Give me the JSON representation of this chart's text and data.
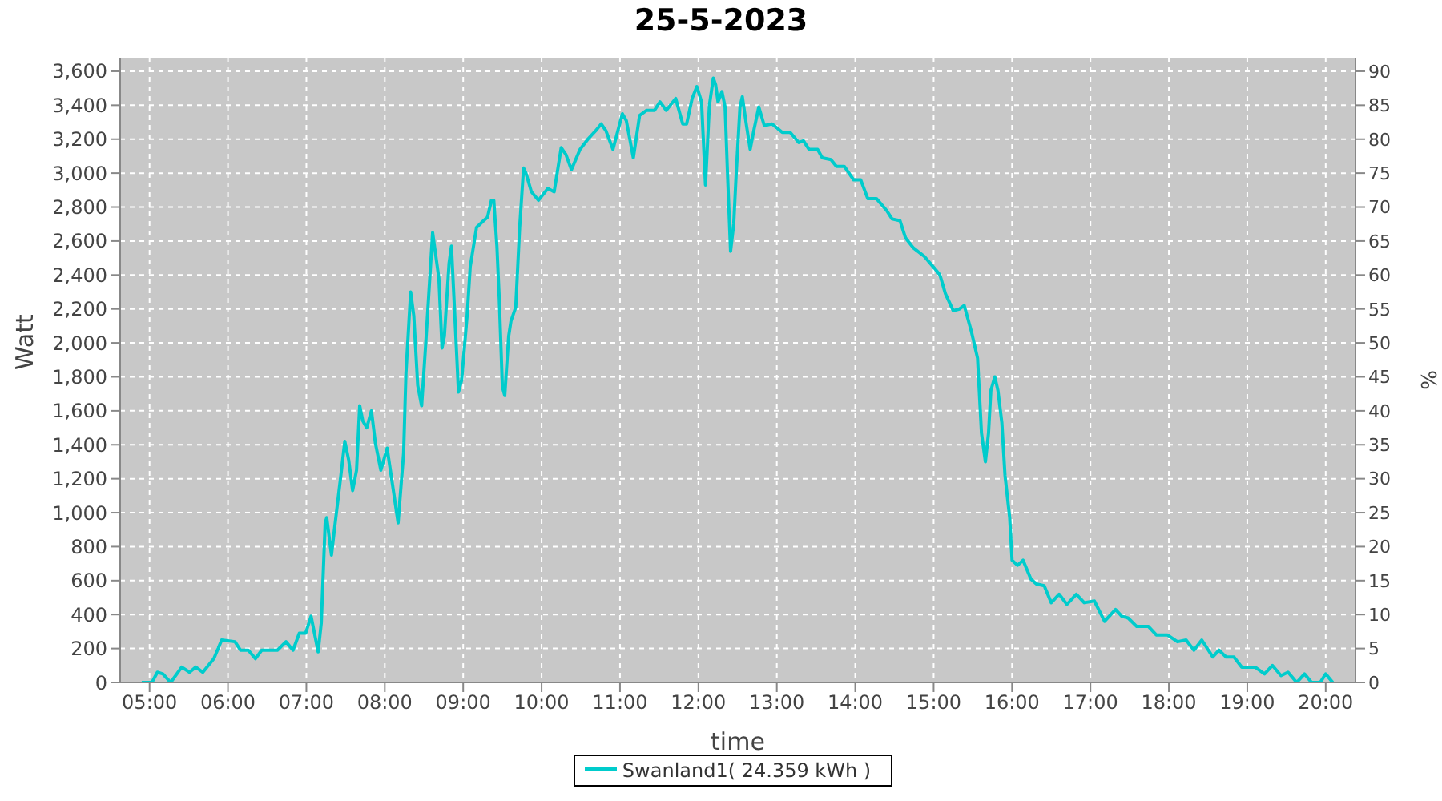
{
  "chart_data": {
    "type": "line",
    "title": "25-5-2023",
    "xlabel": "time",
    "ylabel": "Watt",
    "y2label": "%",
    "xlim": [
      4.625,
      20.38
    ],
    "xticks": [
      {
        "value": 5,
        "label": "05:00"
      },
      {
        "value": 6,
        "label": "06:00"
      },
      {
        "value": 7,
        "label": "07:00"
      },
      {
        "value": 8,
        "label": "08:00"
      },
      {
        "value": 9,
        "label": "09:00"
      },
      {
        "value": 10,
        "label": "10:00"
      },
      {
        "value": 11,
        "label": "11:00"
      },
      {
        "value": 12,
        "label": "12:00"
      },
      {
        "value": 13,
        "label": "13:00"
      },
      {
        "value": 14,
        "label": "14:00"
      },
      {
        "value": 15,
        "label": "15:00"
      },
      {
        "value": 16,
        "label": "16:00"
      },
      {
        "value": 17,
        "label": "17:00"
      },
      {
        "value": 18,
        "label": "18:00"
      },
      {
        "value": 19,
        "label": "19:00"
      },
      {
        "value": 20,
        "label": "20:00"
      }
    ],
    "ylim": [
      0,
      3680
    ],
    "yticks": [
      0,
      200,
      400,
      600,
      800,
      {
        "value": 1000,
        "label": "1,000"
      },
      {
        "value": 1200,
        "label": "1,200"
      },
      {
        "value": 1400,
        "label": "1,400"
      },
      {
        "value": 1600,
        "label": "1,600"
      },
      {
        "value": 1800,
        "label": "1,800"
      },
      {
        "value": 2000,
        "label": "2,000"
      },
      {
        "value": 2200,
        "label": "2,200"
      },
      {
        "value": 2400,
        "label": "2,400"
      },
      {
        "value": 2600,
        "label": "2,600"
      },
      {
        "value": 2800,
        "label": "2,800"
      },
      {
        "value": 3000,
        "label": "3,000"
      },
      {
        "value": 3200,
        "label": "3,200"
      },
      {
        "value": 3400,
        "label": "3,400"
      },
      {
        "value": 3600,
        "label": "3,600"
      }
    ],
    "y2lim": [
      0,
      92
    ],
    "y2ticks": [
      0,
      5,
      10,
      15,
      20,
      25,
      30,
      35,
      40,
      45,
      50,
      55,
      60,
      65,
      70,
      75,
      80,
      85,
      90
    ],
    "grid": true,
    "legend": "bottom",
    "marker": "none",
    "line_style": "solid",
    "series": [
      {
        "name": "Swanland1( 24.359 kWh )",
        "color": "#00cccc",
        "x": [
          4.9,
          5.03,
          5.1,
          5.17,
          5.27,
          5.41,
          5.51,
          5.59,
          5.68,
          5.82,
          5.92,
          6.09,
          6.16,
          6.26,
          6.35,
          6.43,
          6.63,
          6.74,
          6.83,
          6.91,
          6.99,
          7.06,
          7.15,
          7.19,
          7.24,
          7.26,
          7.32,
          7.36,
          7.44,
          7.49,
          7.54,
          7.59,
          7.64,
          7.68,
          7.72,
          7.77,
          7.83,
          7.88,
          7.95,
          8.03,
          8.1,
          8.17,
          8.24,
          8.27,
          8.33,
          8.37,
          8.42,
          8.47,
          8.52,
          8.61,
          8.69,
          8.73,
          8.76,
          8.82,
          8.85,
          8.89,
          8.94,
          8.98,
          9.05,
          9.09,
          9.17,
          9.26,
          9.31,
          9.36,
          9.39,
          9.43,
          9.46,
          9.5,
          9.53,
          9.58,
          9.61,
          9.67,
          9.72,
          9.77,
          9.8,
          9.87,
          9.96,
          10.08,
          10.16,
          10.25,
          10.31,
          10.38,
          10.49,
          10.59,
          10.69,
          10.76,
          10.82,
          10.91,
          11.03,
          11.08,
          11.17,
          11.25,
          11.34,
          11.44,
          11.51,
          11.59,
          11.71,
          11.8,
          11.85,
          11.92,
          11.98,
          12.04,
          12.09,
          12.14,
          12.19,
          12.22,
          12.25,
          12.3,
          12.34,
          12.37,
          12.41,
          12.45,
          12.48,
          12.53,
          12.56,
          12.61,
          12.66,
          12.71,
          12.77,
          12.84,
          12.94,
          13.07,
          13.17,
          13.28,
          13.34,
          13.41,
          13.52,
          13.58,
          13.69,
          13.76,
          13.86,
          13.98,
          14.07,
          14.16,
          14.27,
          14.4,
          14.47,
          14.57,
          14.64,
          14.74,
          14.88,
          15.01,
          15.08,
          15.15,
          15.25,
          15.33,
          15.39,
          15.48,
          15.56,
          15.61,
          15.66,
          15.7,
          15.73,
          15.78,
          15.82,
          15.87,
          15.91,
          15.97,
          16.0,
          16.07,
          16.14,
          16.24,
          16.31,
          16.41,
          16.5,
          16.6,
          16.7,
          16.82,
          16.92,
          17.05,
          17.18,
          17.32,
          17.4,
          17.48,
          17.59,
          17.74,
          17.84,
          17.98,
          18.11,
          18.22,
          18.32,
          18.42,
          18.56,
          18.64,
          18.73,
          18.83,
          18.93,
          19.1,
          19.22,
          19.32,
          19.43,
          19.52,
          19.63,
          19.73,
          19.82,
          19.93,
          20.0,
          20.09
        ],
        "values": [
          0,
          0,
          60,
          50,
          0,
          90,
          60,
          90,
          60,
          140,
          250,
          240,
          190,
          190,
          140,
          190,
          190,
          240,
          190,
          290,
          290,
          390,
          180,
          350,
          940,
          970,
          750,
          910,
          1220,
          1420,
          1310,
          1130,
          1250,
          1630,
          1540,
          1500,
          1600,
          1410,
          1250,
          1380,
          1160,
          940,
          1350,
          1820,
          2300,
          2160,
          1750,
          1630,
          1980,
          2650,
          2380,
          1970,
          2040,
          2470,
          2570,
          2190,
          1710,
          1780,
          2160,
          2450,
          2680,
          2720,
          2740,
          2840,
          2840,
          2570,
          2260,
          1740,
          1690,
          2040,
          2130,
          2210,
          2680,
          3030,
          3000,
          2890,
          2840,
          2910,
          2890,
          3150,
          3110,
          3020,
          3140,
          3200,
          3250,
          3290,
          3250,
          3140,
          3350,
          3310,
          3090,
          3340,
          3370,
          3370,
          3420,
          3370,
          3440,
          3290,
          3290,
          3440,
          3510,
          3420,
          2930,
          3400,
          3560,
          3520,
          3420,
          3480,
          3390,
          3010,
          2540,
          2700,
          2980,
          3390,
          3450,
          3290,
          3140,
          3260,
          3390,
          3280,
          3290,
          3240,
          3240,
          3180,
          3190,
          3140,
          3140,
          3090,
          3080,
          3040,
          3040,
          2960,
          2960,
          2850,
          2850,
          2780,
          2730,
          2720,
          2620,
          2560,
          2510,
          2440,
          2400,
          2290,
          2190,
          2200,
          2220,
          2070,
          1910,
          1470,
          1300,
          1470,
          1720,
          1800,
          1720,
          1530,
          1220,
          970,
          720,
          690,
          720,
          610,
          580,
          570,
          470,
          520,
          460,
          520,
          470,
          480,
          360,
          430,
          390,
          380,
          330,
          330,
          280,
          280,
          240,
          250,
          190,
          250,
          150,
          190,
          150,
          150,
          90,
          90,
          50,
          100,
          40,
          60,
          0,
          50,
          0,
          0,
          50,
          0
        ]
      }
    ]
  }
}
